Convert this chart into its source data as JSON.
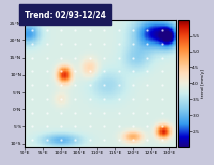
{
  "title": "Trend: 02/93-12/24",
  "lon_min": 90,
  "lon_max": 132,
  "lat_min": -11,
  "lat_max": 26,
  "colorbar_ticks": [
    2.5,
    3.0,
    3.5,
    4.0,
    4.5,
    5.0,
    5.5
  ],
  "colorbar_label": "trend [mm/y]",
  "vmin": 2.0,
  "vmax": 6.0,
  "xlabel_ticks": [
    90,
    95,
    100,
    105,
    110,
    115,
    120,
    125,
    130
  ],
  "ylabel_ticks": [
    -10,
    -5,
    0,
    5,
    10,
    15,
    20,
    25
  ],
  "ocean_bg": "#00006e",
  "land_color": "#00006e",
  "fig_bg": "#c8c8dc",
  "title_bg": "#1a1a5a",
  "title_color": "white",
  "title_fontsize": 5.5
}
